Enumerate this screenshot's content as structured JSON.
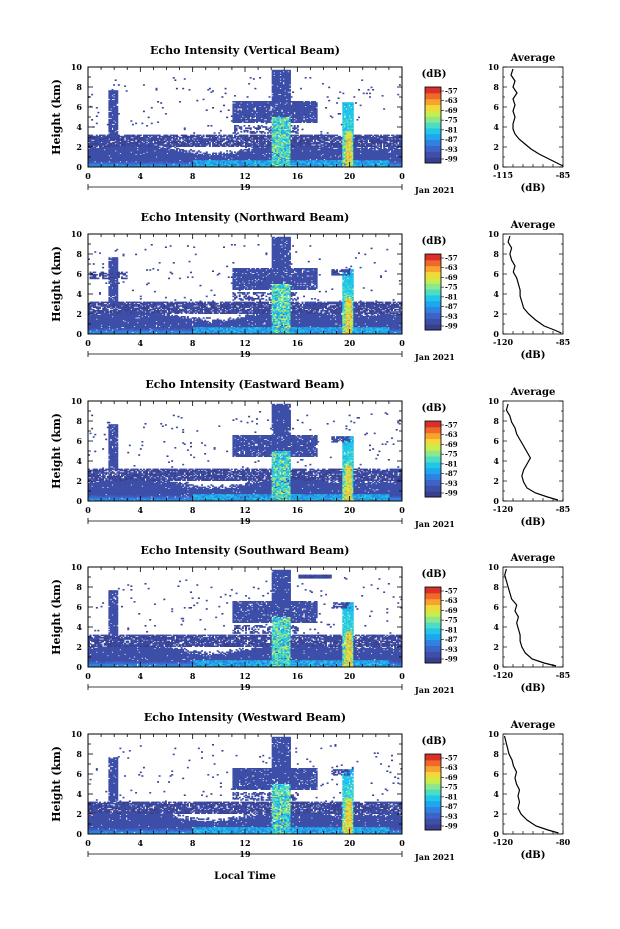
{
  "x_axis_label": "Local Time",
  "colorbar": {
    "unit": "(dB)",
    "ticks": [
      "-57",
      "-63",
      "-69",
      "-75",
      "-81",
      "-87",
      "-93",
      "-99"
    ],
    "colors": [
      "#3a3f8c",
      "#3d4fa8",
      "#3d63c8",
      "#2f82e0",
      "#1ea6ef",
      "#21c6e9",
      "#4fdcc4",
      "#8ce88a",
      "#c9ee4c",
      "#f2d83a",
      "#f6a42f",
      "#f0682a",
      "#d9302a"
    ]
  },
  "chart_data": [
    {
      "type": "heatmap",
      "title": "Echo Intensity (Vertical Beam)",
      "ylabel": "Height (km)",
      "y_ticks": [
        "0",
        "2",
        "4",
        "6",
        "8",
        "10"
      ],
      "x_ticks": [
        "0",
        "4",
        "8",
        "12",
        "16",
        "20",
        "0"
      ],
      "day_label": "19",
      "month_label": "Jan 2021",
      "ylim": [
        0,
        10
      ],
      "xlim": [
        0,
        24
      ],
      "zlim": [
        -99,
        -57
      ],
      "avg": {
        "title": "Average",
        "xlabel": "(dB)",
        "x_ticks": [
          "-115",
          "-85"
        ],
        "xlim": [
          -115,
          -85
        ],
        "profile": [
          [
            -85,
            0.1
          ],
          [
            -88,
            0.4
          ],
          [
            -92,
            0.8
          ],
          [
            -97,
            1.3
          ],
          [
            -101,
            1.8
          ],
          [
            -104,
            2.3
          ],
          [
            -107,
            2.8
          ],
          [
            -109,
            3.3
          ],
          [
            -110,
            3.8
          ],
          [
            -110,
            4.3
          ],
          [
            -109,
            5.0
          ],
          [
            -110,
            5.6
          ],
          [
            -109,
            6.2
          ],
          [
            -110,
            6.8
          ],
          [
            -108,
            7.4
          ],
          [
            -110,
            8.0
          ],
          [
            -109,
            8.6
          ],
          [
            -111,
            9.2
          ],
          [
            -110,
            9.8
          ]
        ]
      }
    },
    {
      "type": "heatmap",
      "title": "Echo Intensity (Northward Beam)",
      "ylabel": "Height (km)",
      "y_ticks": [
        "0",
        "2",
        "4",
        "6",
        "8",
        "10"
      ],
      "x_ticks": [
        "0",
        "4",
        "8",
        "12",
        "16",
        "20",
        "0"
      ],
      "day_label": "19",
      "month_label": "Jan 2021",
      "ylim": [
        0,
        10
      ],
      "xlim": [
        0,
        24
      ],
      "zlim": [
        -99,
        -57
      ],
      "avg": {
        "title": "Average",
        "xlabel": "(dB)",
        "x_ticks": [
          "-120",
          "-85"
        ],
        "xlim": [
          -120,
          -85
        ],
        "profile": [
          [
            -86,
            0.1
          ],
          [
            -90,
            0.4
          ],
          [
            -96,
            0.8
          ],
          [
            -101,
            1.4
          ],
          [
            -105,
            2.0
          ],
          [
            -108,
            2.6
          ],
          [
            -109,
            3.2
          ],
          [
            -110,
            3.8
          ],
          [
            -110,
            4.4
          ],
          [
            -111,
            5.0
          ],
          [
            -112,
            5.6
          ],
          [
            -114,
            6.2
          ],
          [
            -113,
            6.8
          ],
          [
            -115,
            7.4
          ],
          [
            -116,
            8.0
          ],
          [
            -115,
            8.6
          ],
          [
            -117,
            9.2
          ],
          [
            -116,
            9.8
          ]
        ]
      }
    },
    {
      "type": "heatmap",
      "title": "Echo Intensity (Eastward Beam)",
      "ylabel": "Height (km)",
      "y_ticks": [
        "0",
        "2",
        "4",
        "6",
        "8",
        "10"
      ],
      "x_ticks": [
        "0",
        "4",
        "8",
        "12",
        "16",
        "20",
        "0"
      ],
      "day_label": "19",
      "month_label": "Jan 2021",
      "ylim": [
        0,
        10
      ],
      "xlim": [
        0,
        24
      ],
      "zlim": [
        -99,
        -57
      ],
      "avg": {
        "title": "Average",
        "xlabel": "(dB)",
        "x_ticks": [
          "-120",
          "-85"
        ],
        "xlim": [
          -120,
          -85
        ],
        "profile": [
          [
            -88,
            0.1
          ],
          [
            -94,
            0.4
          ],
          [
            -101,
            0.8
          ],
          [
            -106,
            1.3
          ],
          [
            -108,
            1.9
          ],
          [
            -109,
            2.5
          ],
          [
            -108,
            3.1
          ],
          [
            -106,
            3.7
          ],
          [
            -104,
            4.3
          ],
          [
            -106,
            4.9
          ],
          [
            -108,
            5.5
          ],
          [
            -110,
            6.1
          ],
          [
            -112,
            6.7
          ],
          [
            -113,
            7.3
          ],
          [
            -115,
            7.9
          ],
          [
            -116,
            8.5
          ],
          [
            -118,
            9.1
          ],
          [
            -117,
            9.7
          ]
        ]
      }
    },
    {
      "type": "heatmap",
      "title": "Echo Intensity (Southward Beam)",
      "ylabel": "Height (km)",
      "y_ticks": [
        "0",
        "2",
        "4",
        "6",
        "8",
        "10"
      ],
      "x_ticks": [
        "0",
        "4",
        "8",
        "12",
        "16",
        "20",
        "0"
      ],
      "day_label": "19",
      "month_label": "Jan 2021",
      "ylim": [
        0,
        10
      ],
      "xlim": [
        0,
        24
      ],
      "zlim": [
        -99,
        -57
      ],
      "avg": {
        "title": "Average",
        "xlabel": "(dB)",
        "x_ticks": [
          "-120",
          "-85"
        ],
        "xlim": [
          -120,
          -85
        ],
        "profile": [
          [
            -89,
            0.1
          ],
          [
            -96,
            0.4
          ],
          [
            -103,
            0.8
          ],
          [
            -107,
            1.4
          ],
          [
            -109,
            2.0
          ],
          [
            -110,
            2.6
          ],
          [
            -110,
            3.2
          ],
          [
            -111,
            3.8
          ],
          [
            -112,
            4.4
          ],
          [
            -111,
            5.0
          ],
          [
            -113,
            5.6
          ],
          [
            -112,
            6.2
          ],
          [
            -115,
            6.8
          ],
          [
            -116,
            7.4
          ],
          [
            -117,
            8.0
          ],
          [
            -118,
            8.6
          ],
          [
            -119,
            9.2
          ],
          [
            -118,
            9.8
          ]
        ]
      }
    },
    {
      "type": "heatmap",
      "title": "Echo Intensity (Westward Beam)",
      "ylabel": "Height (km)",
      "y_ticks": [
        "0",
        "2",
        "4",
        "6",
        "8",
        "10"
      ],
      "x_ticks": [
        "0",
        "4",
        "8",
        "12",
        "16",
        "20",
        "0"
      ],
      "day_label": "19",
      "month_label": "Jan 2021",
      "ylim": [
        0,
        10
      ],
      "xlim": [
        0,
        24
      ],
      "zlim": [
        -99,
        -57
      ],
      "avg": {
        "title": "Average",
        "xlabel": "(dB)",
        "x_ticks": [
          "-120",
          "-80"
        ],
        "xlim": [
          -120,
          -80
        ],
        "profile": [
          [
            -83,
            0.1
          ],
          [
            -90,
            0.4
          ],
          [
            -98,
            0.8
          ],
          [
            -104,
            1.4
          ],
          [
            -108,
            2.0
          ],
          [
            -110,
            2.6
          ],
          [
            -109,
            3.2
          ],
          [
            -110,
            3.8
          ],
          [
            -109,
            4.4
          ],
          [
            -111,
            5.0
          ],
          [
            -112,
            5.6
          ],
          [
            -111,
            6.2
          ],
          [
            -113,
            6.8
          ],
          [
            -114,
            7.4
          ],
          [
            -116,
            8.0
          ],
          [
            -117,
            8.6
          ],
          [
            -118,
            9.2
          ],
          [
            -119,
            9.8
          ]
        ]
      }
    }
  ]
}
